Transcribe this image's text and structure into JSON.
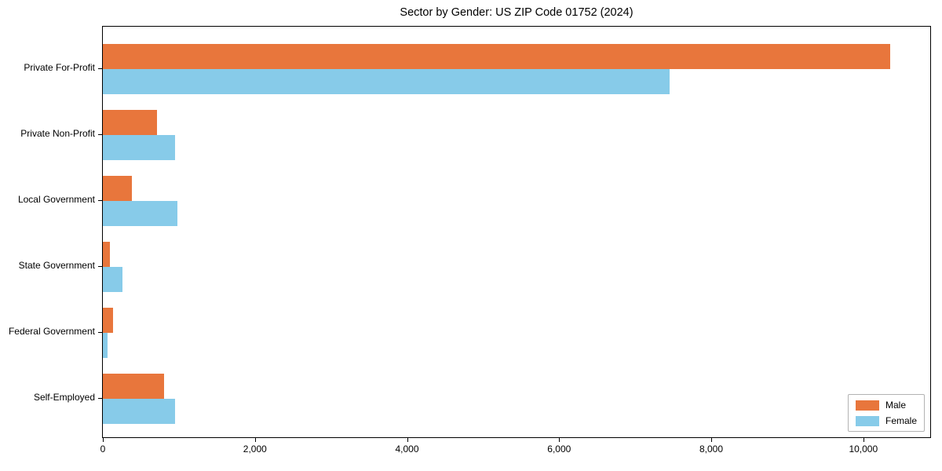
{
  "chart_data": {
    "type": "bar",
    "orientation": "horizontal",
    "title": "Sector by Gender: US ZIP Code 01752 (2024)",
    "categories": [
      "Private For-Profit",
      "Private Non-Profit",
      "Local Government",
      "State Government",
      "Federal Government",
      "Self-Employed"
    ],
    "series": [
      {
        "name": "Male",
        "color": "#e8763c",
        "values": [
          10350,
          710,
          380,
          95,
          130,
          800
        ]
      },
      {
        "name": "Female",
        "color": "#87cbe9",
        "values": [
          7450,
          950,
          980,
          260,
          65,
          950
        ]
      }
    ],
    "x_ticks": [
      "0",
      "2,000",
      "4,000",
      "6,000",
      "8,000",
      "10,000"
    ],
    "x_tick_values": [
      0,
      2000,
      4000,
      6000,
      8000,
      10000
    ],
    "xlim": [
      0,
      10880
    ],
    "grid": false,
    "legend": {
      "position": "lower right",
      "entries": [
        "Male",
        "Female"
      ]
    }
  }
}
